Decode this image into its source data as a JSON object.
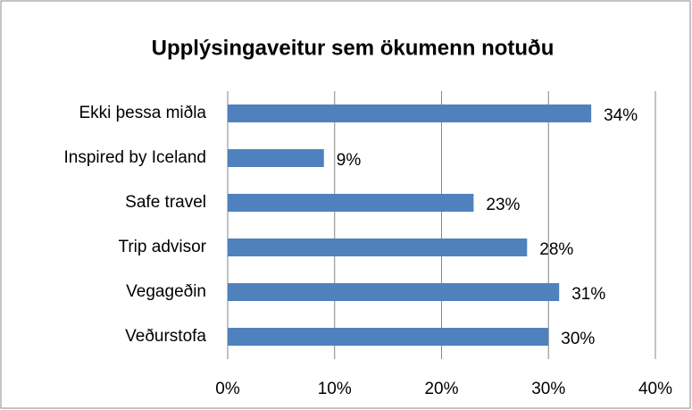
{
  "chart_data": {
    "type": "barh",
    "title": "Upplýsingaveitur sem ökumenn notuðu",
    "categories": [
      "Ekki þessa miðla",
      "Inspired by Iceland",
      "Safe travel",
      "Trip advisor",
      "Vegageðin",
      "Veðurstofa"
    ],
    "values": [
      34,
      9,
      23,
      28,
      31,
      30
    ],
    "value_labels": [
      "34%",
      "9%",
      "23%",
      "28%",
      "31%",
      "30%"
    ],
    "color": "#4f81bd",
    "xlim": [
      0,
      40
    ],
    "xticks": [
      {
        "value": 0,
        "label": "0%"
      },
      {
        "value": 10,
        "label": "10%"
      },
      {
        "value": 20,
        "label": "20%"
      },
      {
        "value": 30,
        "label": "30%"
      },
      {
        "value": 40,
        "label": "40%"
      }
    ],
    "grid": true
  }
}
